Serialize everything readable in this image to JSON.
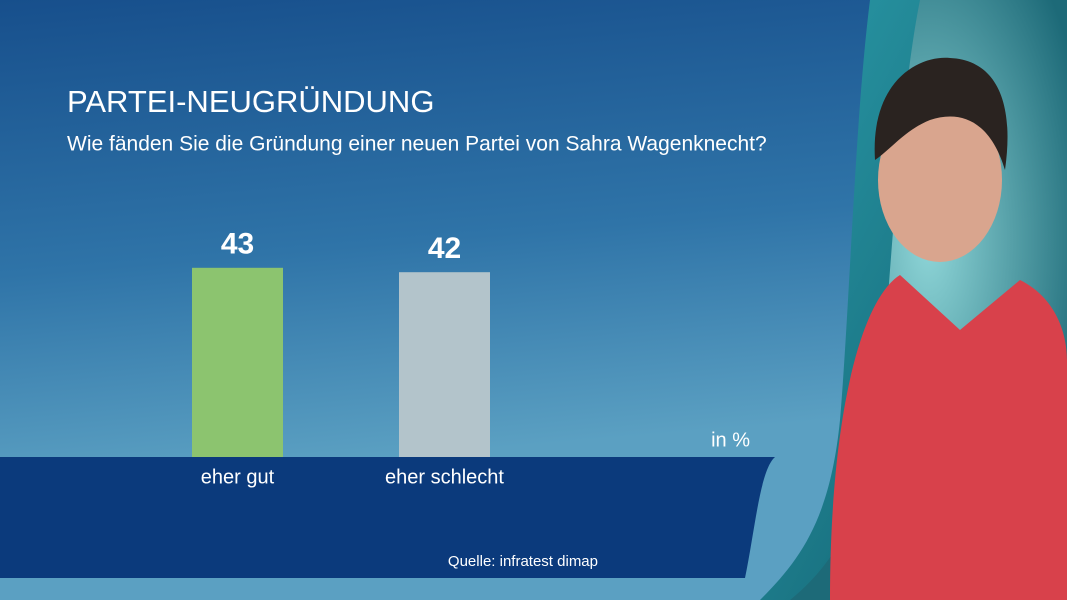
{
  "chart_data": {
    "type": "bar",
    "title": "PARTEI-NEUGRÜNDUNG",
    "subtitle": "Wie fänden Sie die Gründung einer neuen Partei von Sahra Wagenknecht?",
    "categories": [
      "eher gut",
      "eher schlecht"
    ],
    "values": [
      43,
      42
    ],
    "colors": [
      "#8cc46f",
      "#b3c4cb"
    ],
    "ylim": [
      0,
      100
    ],
    "unit_label": "in %",
    "source": "Quelle: infratest dimap"
  }
}
